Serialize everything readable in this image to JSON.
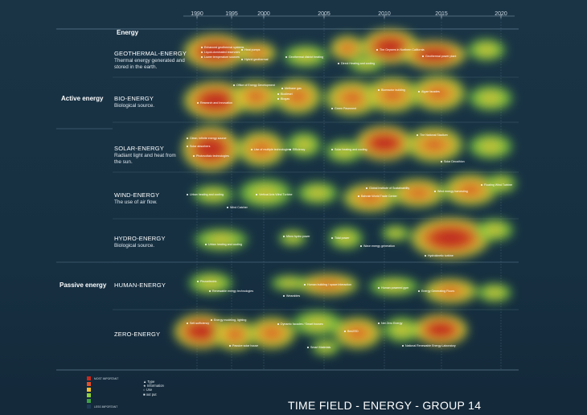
{
  "years": [
    "1990",
    "1995",
    "2000",
    "2005",
    "2010",
    "2015",
    "2020"
  ],
  "header": {
    "energy": "Energy"
  },
  "groups": {
    "active": "Active energy",
    "passive": "Passive energy"
  },
  "categories": [
    {
      "title": "GEOTHERMAL-ENERGY",
      "desc": "Thermal energy generated and stored in the earth."
    },
    {
      "title": "BIO-ENERGY",
      "desc": "Biological source."
    },
    {
      "title": "SOLAR-ENERGY",
      "desc": "Radiant light and heat from the sun."
    },
    {
      "title": "WIND-ENERGY",
      "desc": "The use of air flow."
    },
    {
      "title": "HYDRO-ENERGY",
      "desc": "Biological source."
    },
    {
      "title": "HUMAN-ENERGY",
      "desc": ""
    },
    {
      "title": "ZERO-ENERGY",
      "desc": ""
    }
  ],
  "notes": [
    {
      "text": "Enhanced geothermal systems",
      "row": 0
    },
    {
      "text": "Liquid-dominated reservoirs",
      "row": 0
    },
    {
      "text": "Lower temperature sources",
      "row": 0
    },
    {
      "text": "Hybrid geothermal",
      "row": 0
    },
    {
      "text": "Geothermal district heating",
      "row": 0
    },
    {
      "text": "Heat pumps",
      "row": 0
    },
    {
      "text": "Direct Heating and cooling",
      "row": 0
    },
    {
      "text": "The Geysers in Northern California",
      "row": 0
    },
    {
      "text": "Geothermal power plant",
      "row": 0
    },
    {
      "text": "Office of Energy Development",
      "row": 1
    },
    {
      "text": "Research and Innovation",
      "row": 1
    },
    {
      "text": "Methane gas",
      "row": 1
    },
    {
      "text": "Biodiesel",
      "row": 1
    },
    {
      "text": "Biogas",
      "row": 1
    },
    {
      "text": "Green Pavement",
      "row": 1
    },
    {
      "text": "Bioreactor building",
      "row": 1
    },
    {
      "text": "Algae facades",
      "row": 1
    },
    {
      "text": "Clean, infinite energy source",
      "row": 2
    },
    {
      "text": "Solar absorbers",
      "row": 2
    },
    {
      "text": "Photovoltaic technologies",
      "row": 2
    },
    {
      "text": "Use of multiple technologies",
      "row": 2
    },
    {
      "text": "Efficiency",
      "row": 2
    },
    {
      "text": "Solar heating and cooling",
      "row": 2
    },
    {
      "text": "The National Stadium",
      "row": 2
    },
    {
      "text": "Solar Decathlon",
      "row": 2
    },
    {
      "text": "Urban heating and cooling",
      "row": 3
    },
    {
      "text": "Vertical Axis Wind Turbine",
      "row": 3
    },
    {
      "text": "Global Institute of Sustainability",
      "row": 3
    },
    {
      "text": "Bahrain World Trade Center",
      "row": 3
    },
    {
      "text": "Wind energy harvesting",
      "row": 3
    },
    {
      "text": "Floating Wind Turbine",
      "row": 3
    },
    {
      "text": "Wind Catcher",
      "row": 3
    },
    {
      "text": "Micro hydro power",
      "row": 4
    },
    {
      "text": "Tidal power",
      "row": 4
    },
    {
      "text": "Wave energy generation",
      "row": 4
    },
    {
      "text": "Hydrokinetic turbine",
      "row": 4
    },
    {
      "text": "Urban heating and cooling",
      "row": 4
    },
    {
      "text": "Piezoelectric",
      "row": 5
    },
    {
      "text": "Renewable energy technologies",
      "row": 5
    },
    {
      "text": "Human building / space interaction",
      "row": 5
    },
    {
      "text": "Wearables",
      "row": 5
    },
    {
      "text": "Human powered gym",
      "row": 5
    },
    {
      "text": "Energy Generating Floors",
      "row": 5
    },
    {
      "text": "Self-sufficiency",
      "row": 6
    },
    {
      "text": "Energy modeling, lighting",
      "row": 6
    },
    {
      "text": "Passive solar house",
      "row": 6
    },
    {
      "text": "Dynamic facades / Smart houses",
      "row": 6
    },
    {
      "text": "BedZED",
      "row": 6
    },
    {
      "text": "Net Zero Energy",
      "row": 6
    },
    {
      "text": "Smart Materials",
      "row": 6
    },
    {
      "text": "National Renewable Energy Laboratory",
      "row": 6
    }
  ],
  "legend": {
    "most": "MOST IMPORTANT",
    "least": "LESS IMPORTANT",
    "colors": [
      "#c62a1e",
      "#e4502a",
      "#f1c232",
      "#8fd13a",
      "#3fa043",
      "#1e3a54"
    ],
    "key": [
      "Type",
      "Information",
      "Use",
      "out put"
    ],
    "key_icons": [
      "triangle-icon",
      "star-icon",
      "circle-icon",
      "square-icon"
    ]
  },
  "footer": "TIME FIELD - ENERGY - GROUP 14"
}
